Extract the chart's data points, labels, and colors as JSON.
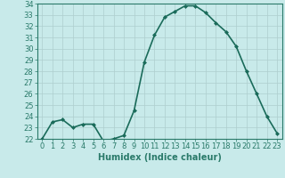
{
  "x": [
    0,
    1,
    2,
    3,
    4,
    5,
    6,
    7,
    8,
    9,
    10,
    11,
    12,
    13,
    14,
    15,
    16,
    17,
    18,
    19,
    20,
    21,
    22,
    23
  ],
  "y": [
    22.0,
    23.5,
    23.7,
    23.0,
    23.3,
    23.3,
    21.8,
    22.0,
    22.3,
    24.5,
    28.8,
    31.2,
    32.8,
    33.3,
    33.8,
    33.8,
    33.2,
    32.3,
    31.5,
    30.2,
    28.0,
    26.0,
    24.0,
    22.5
  ],
  "line_color": "#1a6b5a",
  "marker": "D",
  "marker_size": 2.0,
  "bg_color": "#c8eaea",
  "grid_color": "#aecece",
  "xlabel": "Humidex (Indice chaleur)",
  "ylim": [
    22,
    34
  ],
  "xlim": [
    -0.5,
    23.5
  ],
  "yticks": [
    22,
    23,
    24,
    25,
    26,
    27,
    28,
    29,
    30,
    31,
    32,
    33,
    34
  ],
  "xticks": [
    0,
    1,
    2,
    3,
    4,
    5,
    6,
    7,
    8,
    9,
    10,
    11,
    12,
    13,
    14,
    15,
    16,
    17,
    18,
    19,
    20,
    21,
    22,
    23
  ],
  "xlabel_fontsize": 7,
  "tick_fontsize": 6,
  "line_width": 1.2,
  "spine_color": "#2a7a6a"
}
